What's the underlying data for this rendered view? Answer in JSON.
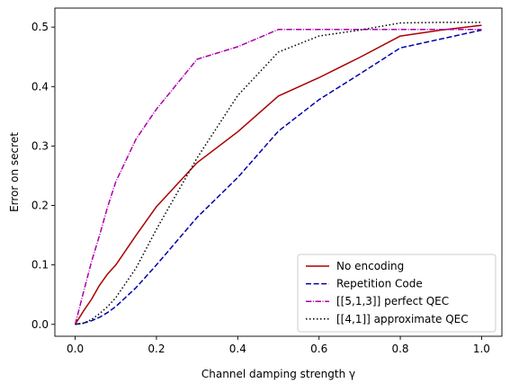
{
  "chart_data": {
    "type": "line",
    "xlabel": "Channel damping strength γ",
    "ylabel": "Error on secret",
    "xlim": [
      -0.05,
      1.05
    ],
    "ylim": [
      -0.02,
      0.532
    ],
    "xticks": [
      0.0,
      0.2,
      0.4,
      0.6,
      0.8,
      1.0
    ],
    "xtick_labels": [
      "0.0",
      "0.2",
      "0.4",
      "0.6",
      "0.8",
      "1.0"
    ],
    "yticks": [
      0.0,
      0.1,
      0.2,
      0.3,
      0.4,
      0.5
    ],
    "ytick_labels": [
      "0.0",
      "0.1",
      "0.2",
      "0.3",
      "0.4",
      "0.5"
    ],
    "grid": false,
    "legend_position": "bottom-right",
    "series": [
      {
        "name": "No encoding",
        "color": "#aa0000",
        "dash": "solid",
        "x": [
          0.0,
          0.02,
          0.04,
          0.06,
          0.08,
          0.1,
          0.15,
          0.2,
          0.3,
          0.4,
          0.5,
          0.6,
          0.7,
          0.8,
          0.9,
          1.0
        ],
        "y": [
          0.0,
          0.022,
          0.042,
          0.066,
          0.085,
          0.1,
          0.15,
          0.198,
          0.272,
          0.324,
          0.384,
          0.415,
          0.449,
          0.485,
          0.495,
          0.503
        ]
      },
      {
        "name": "Repetition Code",
        "color": "#0000aa",
        "dash": "dashed",
        "x": [
          0.0,
          0.02,
          0.04,
          0.06,
          0.08,
          0.1,
          0.15,
          0.2,
          0.3,
          0.4,
          0.5,
          0.6,
          0.7,
          0.8,
          0.9,
          1.0
        ],
        "y": [
          0.0,
          0.002,
          0.006,
          0.012,
          0.02,
          0.03,
          0.062,
          0.1,
          0.18,
          0.247,
          0.325,
          0.378,
          0.421,
          0.465,
          0.48,
          0.495
        ]
      },
      {
        "name": "[[5,1,3]] perfect QEC",
        "color": "#aa00aa",
        "dash": "dashdot",
        "x": [
          0.0,
          0.02,
          0.04,
          0.06,
          0.08,
          0.1,
          0.15,
          0.2,
          0.3,
          0.4,
          0.5,
          0.6,
          0.7,
          0.8,
          0.9,
          1.0
        ],
        "y": [
          0.0,
          0.053,
          0.105,
          0.15,
          0.198,
          0.24,
          0.312,
          0.362,
          0.446,
          0.467,
          0.496,
          0.496,
          0.496,
          0.496,
          0.496,
          0.496
        ]
      },
      {
        "name": "[[4,1]] approximate QEC",
        "color": "#000000",
        "dash": "dotted",
        "x": [
          0.0,
          0.02,
          0.04,
          0.06,
          0.08,
          0.1,
          0.15,
          0.2,
          0.3,
          0.4,
          0.5,
          0.6,
          0.7,
          0.8,
          0.9,
          1.0
        ],
        "y": [
          0.0,
          0.002,
          0.008,
          0.018,
          0.03,
          0.045,
          0.095,
          0.16,
          0.28,
          0.385,
          0.458,
          0.485,
          0.495,
          0.507,
          0.508,
          0.508
        ]
      }
    ]
  }
}
